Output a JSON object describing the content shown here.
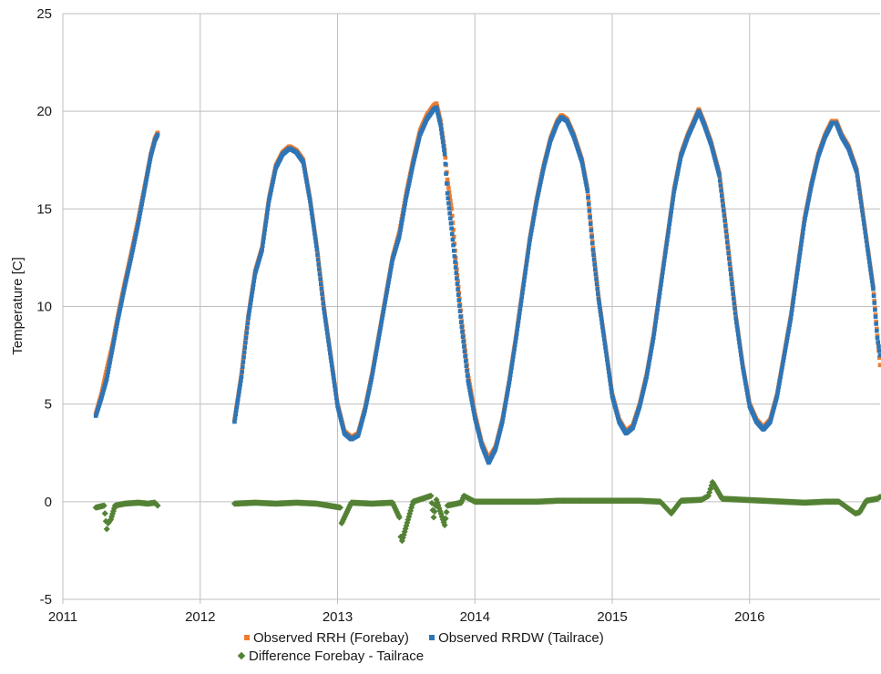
{
  "chart_data": {
    "type": "scatter",
    "title": "",
    "xlabel": "",
    "ylabel": "Temperature [C]",
    "xlim": [
      2011,
      2016.95
    ],
    "ylim": [
      -5,
      25
    ],
    "x_ticks": [
      "2011",
      "2012",
      "2013",
      "2014",
      "2015",
      "2016"
    ],
    "y_ticks": [
      "-5",
      "0",
      "5",
      "10",
      "15",
      "20",
      "25"
    ],
    "grid": true,
    "legend_position": "bottom",
    "colors": {
      "forebay": "#ED7D31",
      "tailrace": "#2E75B6",
      "difference": "#548235",
      "grid": "#bfbfbf"
    },
    "series": [
      {
        "name": "Observed RRH (Forebay)",
        "marker": "square",
        "points": [
          [
            2011.24,
            4.5
          ],
          [
            2011.28,
            5.5
          ],
          [
            2011.32,
            6.8
          ],
          [
            2011.36,
            8.0
          ],
          [
            2011.4,
            9.5
          ],
          [
            2011.45,
            11.2
          ],
          [
            2011.5,
            12.8
          ],
          [
            2011.55,
            14.5
          ],
          [
            2011.6,
            16.3
          ],
          [
            2011.64,
            17.8
          ],
          [
            2011.67,
            18.6
          ],
          [
            2011.69,
            18.9
          ],
          [
            2012.25,
            4.2
          ],
          [
            2012.3,
            6.5
          ],
          [
            2012.35,
            9.5
          ],
          [
            2012.4,
            11.8
          ],
          [
            2012.45,
            13.0
          ],
          [
            2012.5,
            15.5
          ],
          [
            2012.55,
            17.2
          ],
          [
            2012.6,
            17.9
          ],
          [
            2012.65,
            18.2
          ],
          [
            2012.7,
            18.0
          ],
          [
            2012.75,
            17.5
          ],
          [
            2012.8,
            15.5
          ],
          [
            2012.85,
            13.0
          ],
          [
            2012.9,
            10.0
          ],
          [
            2012.95,
            7.5
          ],
          [
            2013.0,
            5.0
          ],
          [
            2013.05,
            3.6
          ],
          [
            2013.1,
            3.3
          ],
          [
            2013.15,
            3.5
          ],
          [
            2013.2,
            4.8
          ],
          [
            2013.25,
            6.5
          ],
          [
            2013.3,
            8.5
          ],
          [
            2013.35,
            10.5
          ],
          [
            2013.4,
            12.5
          ],
          [
            2013.45,
            13.8
          ],
          [
            2013.5,
            15.8
          ],
          [
            2013.55,
            17.5
          ],
          [
            2013.6,
            19.0
          ],
          [
            2013.65,
            19.8
          ],
          [
            2013.7,
            20.3
          ],
          [
            2013.72,
            20.4
          ],
          [
            2013.75,
            19.5
          ],
          [
            2013.78,
            18.0
          ],
          [
            2013.8,
            16.5
          ],
          [
            2013.83,
            15.0
          ],
          [
            2013.86,
            12.5
          ],
          [
            2013.9,
            9.5
          ],
          [
            2013.95,
            6.5
          ],
          [
            2014.0,
            4.5
          ],
          [
            2014.05,
            3.0
          ],
          [
            2014.1,
            2.2
          ],
          [
            2014.15,
            2.8
          ],
          [
            2014.2,
            4.2
          ],
          [
            2014.25,
            6.2
          ],
          [
            2014.3,
            8.5
          ],
          [
            2014.35,
            11.0
          ],
          [
            2014.4,
            13.5
          ],
          [
            2014.45,
            15.5
          ],
          [
            2014.5,
            17.2
          ],
          [
            2014.55,
            18.6
          ],
          [
            2014.6,
            19.5
          ],
          [
            2014.63,
            19.8
          ],
          [
            2014.67,
            19.6
          ],
          [
            2014.72,
            18.8
          ],
          [
            2014.78,
            17.5
          ],
          [
            2014.82,
            16.0
          ],
          [
            2014.86,
            13.0
          ],
          [
            2014.9,
            10.5
          ],
          [
            2014.95,
            8.0
          ],
          [
            2015.0,
            5.5
          ],
          [
            2015.05,
            4.2
          ],
          [
            2015.1,
            3.6
          ],
          [
            2015.15,
            3.9
          ],
          [
            2015.2,
            5.0
          ],
          [
            2015.25,
            6.5
          ],
          [
            2015.3,
            8.5
          ],
          [
            2015.35,
            11.0
          ],
          [
            2015.4,
            13.5
          ],
          [
            2015.45,
            16.0
          ],
          [
            2015.5,
            17.8
          ],
          [
            2015.55,
            18.8
          ],
          [
            2015.6,
            19.6
          ],
          [
            2015.63,
            20.1
          ],
          [
            2015.67,
            19.4
          ],
          [
            2015.72,
            18.4
          ],
          [
            2015.78,
            16.8
          ],
          [
            2015.82,
            14.5
          ],
          [
            2015.86,
            12.0
          ],
          [
            2015.9,
            9.5
          ],
          [
            2015.95,
            7.0
          ],
          [
            2016.0,
            5.0
          ],
          [
            2016.05,
            4.2
          ],
          [
            2016.1,
            3.8
          ],
          [
            2016.15,
            4.2
          ],
          [
            2016.2,
            5.5
          ],
          [
            2016.25,
            7.5
          ],
          [
            2016.3,
            9.5
          ],
          [
            2016.35,
            12.0
          ],
          [
            2016.4,
            14.5
          ],
          [
            2016.45,
            16.3
          ],
          [
            2016.5,
            17.8
          ],
          [
            2016.55,
            18.8
          ],
          [
            2016.6,
            19.5
          ],
          [
            2016.63,
            19.5
          ],
          [
            2016.67,
            18.8
          ],
          [
            2016.72,
            18.2
          ],
          [
            2016.78,
            17.0
          ],
          [
            2016.82,
            15.0
          ],
          [
            2016.86,
            13.0
          ],
          [
            2016.9,
            11.0
          ],
          [
            2016.93,
            8.5
          ],
          [
            2016.95,
            7.0
          ]
        ]
      },
      {
        "name": "Observed RRDW (Tailrace)",
        "marker": "square",
        "points": [
          [
            2011.24,
            4.4
          ],
          [
            2011.28,
            5.3
          ],
          [
            2011.32,
            6.3
          ],
          [
            2011.36,
            7.8
          ],
          [
            2011.4,
            9.3
          ],
          [
            2011.45,
            11.0
          ],
          [
            2011.5,
            12.6
          ],
          [
            2011.55,
            14.3
          ],
          [
            2011.6,
            16.2
          ],
          [
            2011.64,
            17.7
          ],
          [
            2011.67,
            18.5
          ],
          [
            2011.69,
            18.8
          ],
          [
            2012.25,
            4.1
          ],
          [
            2012.3,
            6.4
          ],
          [
            2012.35,
            9.4
          ],
          [
            2012.4,
            11.7
          ],
          [
            2012.45,
            12.9
          ],
          [
            2012.5,
            15.4
          ],
          [
            2012.55,
            17.1
          ],
          [
            2012.6,
            17.8
          ],
          [
            2012.65,
            18.1
          ],
          [
            2012.7,
            17.9
          ],
          [
            2012.75,
            17.4
          ],
          [
            2012.8,
            15.4
          ],
          [
            2012.85,
            12.9
          ],
          [
            2012.9,
            9.9
          ],
          [
            2012.95,
            7.4
          ],
          [
            2013.0,
            4.9
          ],
          [
            2013.05,
            3.5
          ],
          [
            2013.1,
            3.2
          ],
          [
            2013.15,
            3.4
          ],
          [
            2013.2,
            4.7
          ],
          [
            2013.25,
            6.4
          ],
          [
            2013.3,
            8.4
          ],
          [
            2013.35,
            10.4
          ],
          [
            2013.4,
            12.4
          ],
          [
            2013.45,
            13.6
          ],
          [
            2013.5,
            15.6
          ],
          [
            2013.55,
            17.3
          ],
          [
            2013.6,
            18.8
          ],
          [
            2013.65,
            19.6
          ],
          [
            2013.7,
            20.1
          ],
          [
            2013.72,
            20.2
          ],
          [
            2013.75,
            19.3
          ],
          [
            2013.78,
            17.8
          ],
          [
            2013.8,
            15.8
          ],
          [
            2013.83,
            14.0
          ],
          [
            2013.86,
            12.0
          ],
          [
            2013.9,
            9.2
          ],
          [
            2013.95,
            6.2
          ],
          [
            2014.0,
            4.3
          ],
          [
            2014.05,
            2.9
          ],
          [
            2014.1,
            2.0
          ],
          [
            2014.15,
            2.7
          ],
          [
            2014.2,
            4.1
          ],
          [
            2014.25,
            6.1
          ],
          [
            2014.3,
            8.4
          ],
          [
            2014.35,
            10.9
          ],
          [
            2014.4,
            13.4
          ],
          [
            2014.45,
            15.4
          ],
          [
            2014.5,
            17.1
          ],
          [
            2014.55,
            18.5
          ],
          [
            2014.6,
            19.4
          ],
          [
            2014.63,
            19.7
          ],
          [
            2014.67,
            19.5
          ],
          [
            2014.72,
            18.7
          ],
          [
            2014.78,
            17.4
          ],
          [
            2014.82,
            15.9
          ],
          [
            2014.86,
            12.9
          ],
          [
            2014.9,
            10.4
          ],
          [
            2014.95,
            7.9
          ],
          [
            2015.0,
            5.4
          ],
          [
            2015.05,
            4.1
          ],
          [
            2015.1,
            3.5
          ],
          [
            2015.15,
            3.8
          ],
          [
            2015.2,
            4.9
          ],
          [
            2015.25,
            6.4
          ],
          [
            2015.3,
            8.4
          ],
          [
            2015.35,
            10.9
          ],
          [
            2015.4,
            13.4
          ],
          [
            2015.45,
            15.9
          ],
          [
            2015.5,
            17.7
          ],
          [
            2015.55,
            18.7
          ],
          [
            2015.6,
            19.5
          ],
          [
            2015.63,
            20.0
          ],
          [
            2015.67,
            19.3
          ],
          [
            2015.72,
            18.3
          ],
          [
            2015.78,
            16.7
          ],
          [
            2015.82,
            14.4
          ],
          [
            2015.86,
            11.9
          ],
          [
            2015.9,
            9.4
          ],
          [
            2015.95,
            6.9
          ],
          [
            2016.0,
            4.9
          ],
          [
            2016.05,
            4.1
          ],
          [
            2016.1,
            3.7
          ],
          [
            2016.15,
            4.1
          ],
          [
            2016.2,
            5.4
          ],
          [
            2016.25,
            7.4
          ],
          [
            2016.3,
            9.4
          ],
          [
            2016.35,
            11.9
          ],
          [
            2016.4,
            14.4
          ],
          [
            2016.45,
            16.2
          ],
          [
            2016.5,
            17.7
          ],
          [
            2016.55,
            18.7
          ],
          [
            2016.6,
            19.4
          ],
          [
            2016.63,
            19.4
          ],
          [
            2016.67,
            18.7
          ],
          [
            2016.72,
            18.1
          ],
          [
            2016.78,
            16.9
          ],
          [
            2016.82,
            14.9
          ],
          [
            2016.86,
            12.9
          ],
          [
            2016.9,
            10.9
          ],
          [
            2016.93,
            8.4
          ],
          [
            2016.95,
            7.5
          ]
        ]
      },
      {
        "name": "Difference Forebay - Tailrace",
        "marker": "diamond",
        "points": [
          [
            2011.24,
            -0.3
          ],
          [
            2011.3,
            -0.2
          ],
          [
            2011.32,
            -1.4
          ],
          [
            2011.33,
            -1.1
          ],
          [
            2011.35,
            -0.9
          ],
          [
            2011.38,
            -0.2
          ],
          [
            2011.45,
            -0.1
          ],
          [
            2011.55,
            -0.05
          ],
          [
            2011.62,
            -0.1
          ],
          [
            2011.67,
            -0.05
          ],
          [
            2011.69,
            -0.2
          ],
          [
            2012.25,
            -0.1
          ],
          [
            2012.4,
            -0.05
          ],
          [
            2012.55,
            -0.1
          ],
          [
            2012.7,
            -0.05
          ],
          [
            2012.85,
            -0.1
          ],
          [
            2013.02,
            -0.3
          ],
          [
            2013.03,
            -1.1
          ],
          [
            2013.1,
            -0.05
          ],
          [
            2013.25,
            -0.1
          ],
          [
            2013.4,
            -0.05
          ],
          [
            2013.45,
            -0.8
          ],
          [
            2013.46,
            -1.8
          ],
          [
            2013.47,
            -2.0
          ],
          [
            2013.55,
            0.0
          ],
          [
            2013.68,
            0.3
          ],
          [
            2013.7,
            -0.8
          ],
          [
            2013.72,
            0.1
          ],
          [
            2013.78,
            -1.2
          ],
          [
            2013.8,
            -0.2
          ],
          [
            2013.9,
            -0.05
          ],
          [
            2013.92,
            0.3
          ],
          [
            2014.0,
            0.0
          ],
          [
            2014.15,
            0.0
          ],
          [
            2014.3,
            0.0
          ],
          [
            2014.45,
            0.0
          ],
          [
            2014.6,
            0.05
          ],
          [
            2014.75,
            0.05
          ],
          [
            2014.9,
            0.05
          ],
          [
            2015.05,
            0.05
          ],
          [
            2015.2,
            0.05
          ],
          [
            2015.35,
            0.0
          ],
          [
            2015.43,
            -0.6
          ],
          [
            2015.5,
            0.05
          ],
          [
            2015.65,
            0.1
          ],
          [
            2015.7,
            0.3
          ],
          [
            2015.73,
            1.0
          ],
          [
            2015.8,
            0.15
          ],
          [
            2015.95,
            0.1
          ],
          [
            2016.1,
            0.05
          ],
          [
            2016.25,
            0.0
          ],
          [
            2016.4,
            -0.05
          ],
          [
            2016.55,
            0.0
          ],
          [
            2016.65,
            0.0
          ],
          [
            2016.77,
            -0.6
          ],
          [
            2016.8,
            -0.55
          ],
          [
            2016.85,
            0.05
          ],
          [
            2016.93,
            0.15
          ],
          [
            2016.95,
            0.25
          ]
        ]
      }
    ]
  }
}
